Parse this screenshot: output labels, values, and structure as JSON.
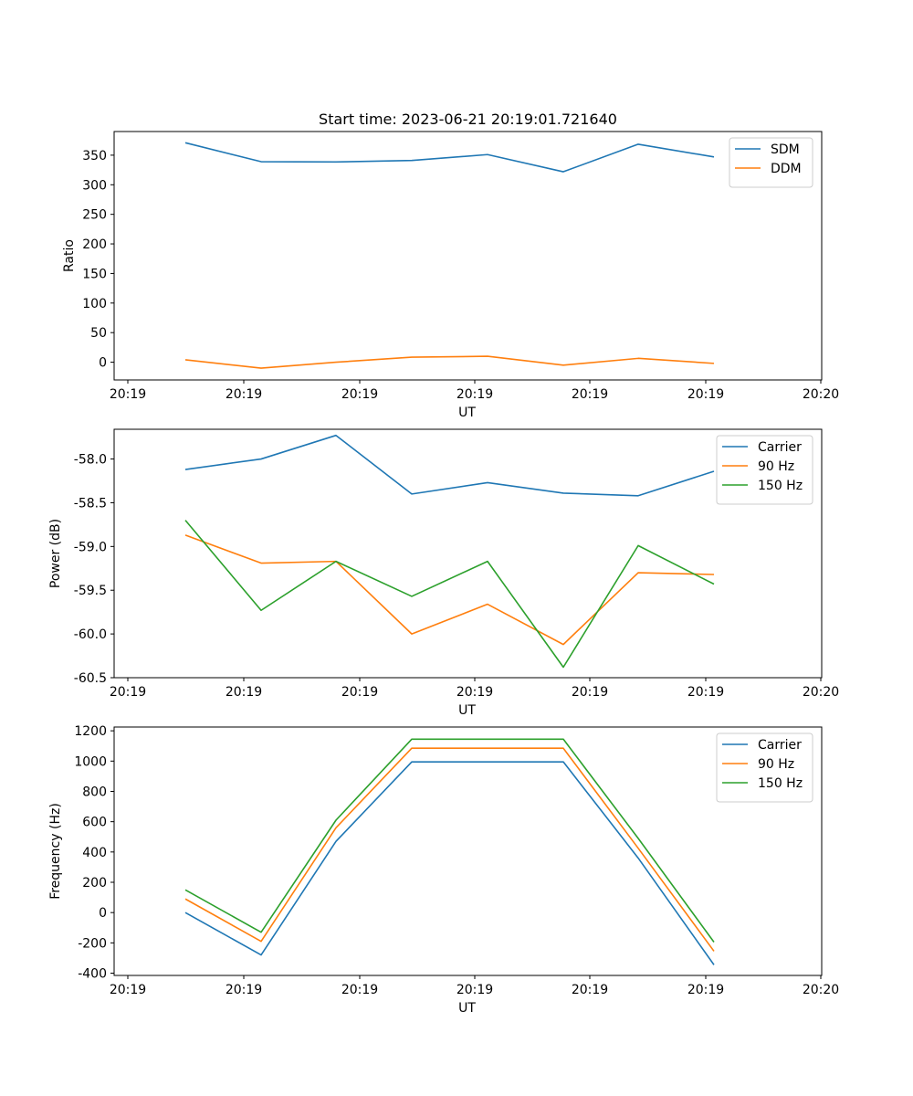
{
  "chart_data": [
    {
      "type": "line",
      "title": "Start time: 2023-06-21 20:19:01.721640",
      "xlabel": "UT",
      "ylabel": "Ratio",
      "xticks": [
        "20:19",
        "20:19",
        "20:19",
        "20:19",
        "20:19",
        "20:19",
        "20:20"
      ],
      "yticks": [
        "0",
        "50",
        "100",
        "150",
        "200",
        "250",
        "300",
        "350"
      ],
      "ylim": [
        -30,
        390
      ],
      "legend_position": "top-right",
      "series": [
        {
          "name": "SDM",
          "color": "#1f77b4",
          "values": [
            371,
            339,
            338.5,
            341,
            351,
            322,
            368.5,
            347
          ]
        },
        {
          "name": "DDM",
          "color": "#ff7f0e",
          "values": [
            4,
            -10,
            0,
            8.5,
            10,
            -5,
            6.5,
            -2
          ]
        }
      ]
    },
    {
      "type": "line",
      "title": "",
      "xlabel": "UT",
      "ylabel": "Power (dB)",
      "xticks": [
        "20:19",
        "20:19",
        "20:19",
        "20:19",
        "20:19",
        "20:19",
        "20:20"
      ],
      "yticks": [
        "-60.5",
        "-60.0",
        "-59.5",
        "-59.0",
        "-58.5",
        "-58.0"
      ],
      "ylim": [
        -60.5,
        -57.66
      ],
      "legend_position": "top-right",
      "series": [
        {
          "name": "Carrier",
          "color": "#1f77b4",
          "values": [
            -58.12,
            -58.0,
            -57.73,
            -58.4,
            -58.27,
            -58.39,
            -58.42,
            -58.14
          ]
        },
        {
          "name": "90 Hz",
          "color": "#ff7f0e",
          "values": [
            -58.87,
            -59.19,
            -59.17,
            -60.0,
            -59.66,
            -60.12,
            -59.3,
            -59.32
          ]
        },
        {
          "name": "150 Hz",
          "color": "#2ca02c",
          "values": [
            -58.7,
            -59.73,
            -59.17,
            -59.57,
            -59.17,
            -60.38,
            -58.99,
            -59.43
          ]
        }
      ]
    },
    {
      "type": "line",
      "title": "",
      "xlabel": "UT",
      "ylabel": "Frequency (Hz)",
      "xticks": [
        "20:19",
        "20:19",
        "20:19",
        "20:19",
        "20:19",
        "20:19",
        "20:20"
      ],
      "yticks": [
        "-400",
        "-200",
        "0",
        "200",
        "400",
        "600",
        "800",
        "1000",
        "1200"
      ],
      "ylim": [
        -415,
        1225
      ],
      "legend_position": "top-right",
      "series": [
        {
          "name": "Carrier",
          "color": "#1f77b4",
          "values": [
            0,
            -280,
            470,
            995,
            995,
            995,
            360,
            -345
          ]
        },
        {
          "name": "90 Hz",
          "color": "#ff7f0e",
          "values": [
            90,
            -190,
            560,
            1085,
            1085,
            1085,
            425,
            -255
          ]
        },
        {
          "name": "150 Hz",
          "color": "#2ca02c",
          "values": [
            150,
            -130,
            610,
            1145,
            1145,
            1145,
            490,
            -195
          ]
        }
      ]
    }
  ]
}
